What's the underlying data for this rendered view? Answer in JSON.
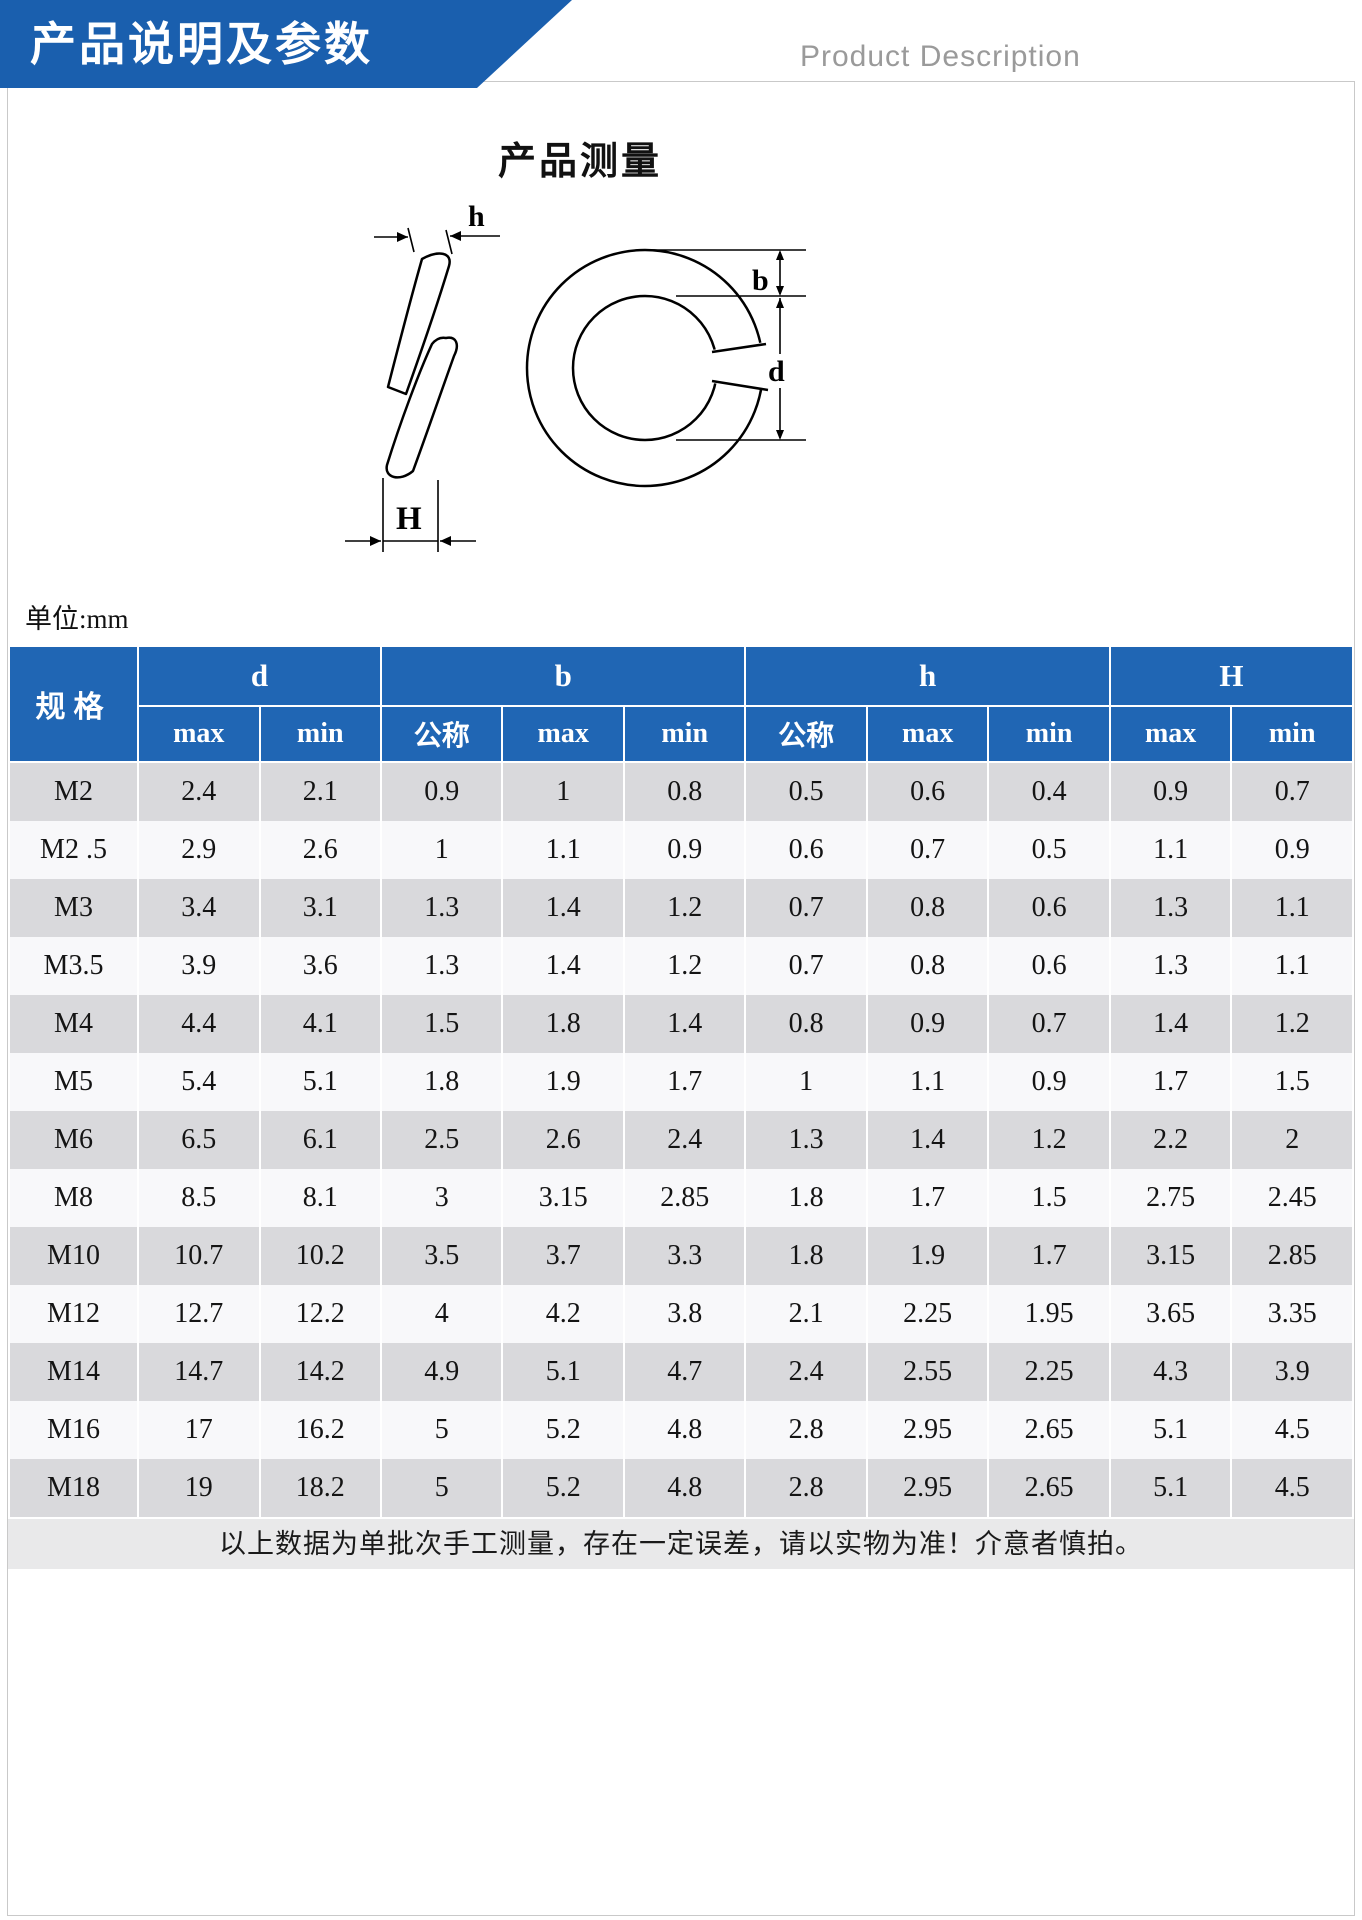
{
  "banner": {
    "title": "产品说明及参数",
    "subtitle": "Product Description"
  },
  "diagram": {
    "title": "产品测量",
    "labels": {
      "h": "h",
      "H": "H",
      "b": "b",
      "d": "d"
    }
  },
  "unit_label": "单位:mm",
  "table": {
    "spec_header": "规格",
    "groups": [
      "d",
      "b",
      "h",
      "H"
    ],
    "sub_headers": [
      "max",
      "min",
      "公称",
      "max",
      "min",
      "公称",
      "max",
      "min",
      "max",
      "min"
    ],
    "rows": [
      {
        "spec": "M2",
        "values": [
          "2.4",
          "2.1",
          "0.9",
          "1",
          "0.8",
          "0.5",
          "0.6",
          "0.4",
          "0.9",
          "0.7"
        ]
      },
      {
        "spec": "M2 .5",
        "values": [
          "2.9",
          "2.6",
          "1",
          "1.1",
          "0.9",
          "0.6",
          "0.7",
          "0.5",
          "1.1",
          "0.9"
        ]
      },
      {
        "spec": "M3",
        "values": [
          "3.4",
          "3.1",
          "1.3",
          "1.4",
          "1.2",
          "0.7",
          "0.8",
          "0.6",
          "1.3",
          "1.1"
        ]
      },
      {
        "spec": "M3.5",
        "values": [
          "3.9",
          "3.6",
          "1.3",
          "1.4",
          "1.2",
          "0.7",
          "0.8",
          "0.6",
          "1.3",
          "1.1"
        ]
      },
      {
        "spec": "M4",
        "values": [
          "4.4",
          "4.1",
          "1.5",
          "1.8",
          "1.4",
          "0.8",
          "0.9",
          "0.7",
          "1.4",
          "1.2"
        ]
      },
      {
        "spec": "M5",
        "values": [
          "5.4",
          "5.1",
          "1.8",
          "1.9",
          "1.7",
          "1",
          "1.1",
          "0.9",
          "1.7",
          "1.5"
        ]
      },
      {
        "spec": "M6",
        "values": [
          "6.5",
          "6.1",
          "2.5",
          "2.6",
          "2.4",
          "1.3",
          "1.4",
          "1.2",
          "2.2",
          "2"
        ]
      },
      {
        "spec": "M8",
        "values": [
          "8.5",
          "8.1",
          "3",
          "3.15",
          "2.85",
          "1.8",
          "1.7",
          "1.5",
          "2.75",
          "2.45"
        ]
      },
      {
        "spec": "M10",
        "values": [
          "10.7",
          "10.2",
          "3.5",
          "3.7",
          "3.3",
          "1.8",
          "1.9",
          "1.7",
          "3.15",
          "2.85"
        ]
      },
      {
        "spec": "M12",
        "values": [
          "12.7",
          "12.2",
          "4",
          "4.2",
          "3.8",
          "2.1",
          "2.25",
          "1.95",
          "3.65",
          "3.35"
        ]
      },
      {
        "spec": "M14",
        "values": [
          "14.7",
          "14.2",
          "4.9",
          "5.1",
          "4.7",
          "2.4",
          "2.55",
          "2.25",
          "4.3",
          "3.9"
        ]
      },
      {
        "spec": "M16",
        "values": [
          "17",
          "16.2",
          "5",
          "5.2",
          "4.8",
          "2.8",
          "2.95",
          "2.65",
          "5.1",
          "4.5"
        ]
      },
      {
        "spec": "M18",
        "values": [
          "19",
          "18.2",
          "5",
          "5.2",
          "4.8",
          "2.8",
          "2.95",
          "2.65",
          "5.1",
          "4.5"
        ]
      }
    ]
  },
  "footer_note": "以上数据为单批次手工测量，存在一定误差，请以实物为准！介意者慎拍。",
  "colors": {
    "banner_blue": "#1a5fae",
    "header_blue": "#2066b4",
    "row_gray": "#d9d9dc",
    "row_light": "#f8f8fa",
    "note_gray": "#e9e9ea",
    "subtitle_gray": "#9a9a9a"
  }
}
